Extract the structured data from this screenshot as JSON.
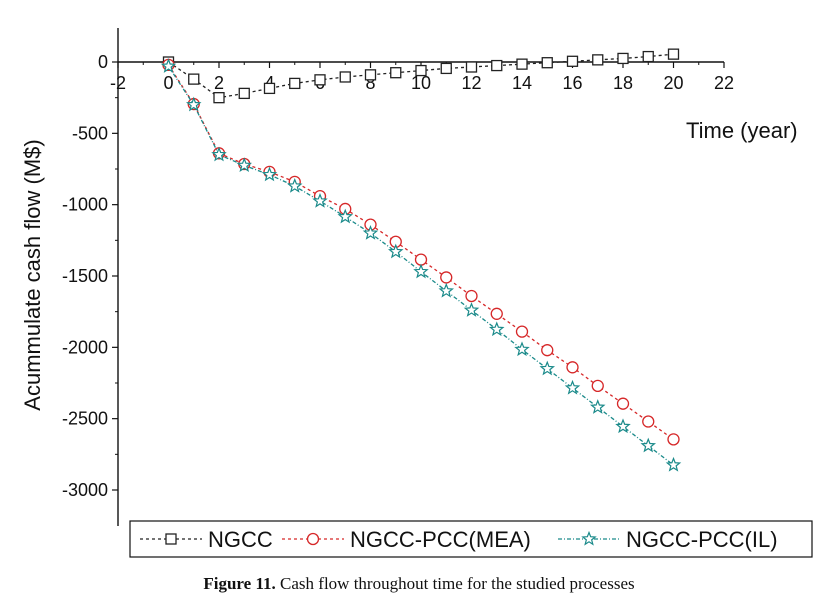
{
  "chart_data": {
    "type": "line",
    "xlabel": "Time (year)",
    "ylabel": "Acummulate cash flow (M$)",
    "xlim": [
      -2,
      22
    ],
    "ylim": [
      -3000,
      0
    ],
    "xticks": [
      "-2",
      "0",
      "2",
      "4",
      "6",
      "8",
      "10",
      "12",
      "14",
      "16",
      "18",
      "20",
      "22"
    ],
    "yticks": [
      "0",
      "-500",
      "-1000",
      "-1500",
      "-2000",
      "-2500",
      "-3000"
    ],
    "x": [
      0,
      1,
      2,
      3,
      4,
      5,
      6,
      7,
      8,
      9,
      10,
      11,
      12,
      13,
      14,
      15,
      16,
      17,
      18,
      19,
      20
    ],
    "series": [
      {
        "name": "NGCC",
        "color": "#222222",
        "marker": "square",
        "values": [
          0,
          -120,
          -250,
          -220,
          -185,
          -150,
          -125,
          -105,
          -90,
          -75,
          -60,
          -45,
          -35,
          -25,
          -15,
          -5,
          5,
          15,
          25,
          38,
          55
        ]
      },
      {
        "name": "NGCC-PCC(MEA)",
        "color": "#d62728",
        "marker": "circle",
        "values": [
          -20,
          -295,
          -640,
          -715,
          -770,
          -840,
          -940,
          -1030,
          -1140,
          -1260,
          -1385,
          -1510,
          -1640,
          -1765,
          -1890,
          -2020,
          -2140,
          -2270,
          -2395,
          -2520,
          -2645
        ]
      },
      {
        "name": "NGCC-PCC(IL)",
        "color": "#1a8a8a",
        "marker": "star",
        "values": [
          -30,
          -300,
          -650,
          -725,
          -790,
          -870,
          -975,
          -1085,
          -1200,
          -1330,
          -1470,
          -1605,
          -1740,
          -1875,
          -2015,
          -2150,
          -2285,
          -2420,
          -2555,
          -2690,
          -2825
        ]
      }
    ],
    "legend_position": "bottom",
    "grid": false
  },
  "caption": {
    "label": "Figure 11.",
    "text": " Cash flow throughout time for the studied processes"
  }
}
